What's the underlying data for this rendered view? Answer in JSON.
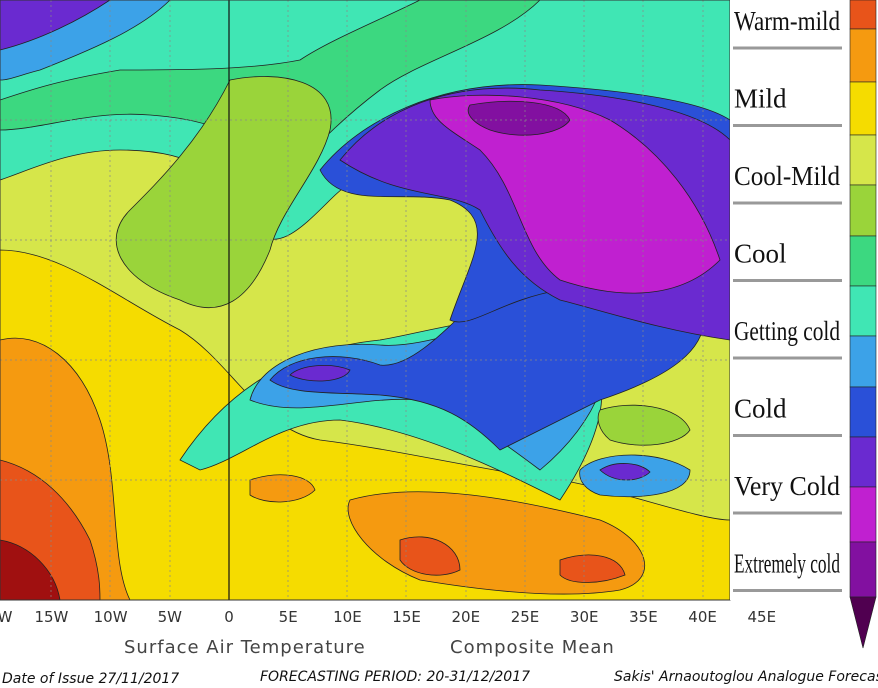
{
  "legend": {
    "labels": [
      "Warm-mild",
      "Mild",
      "Cool-Mild",
      "Cool",
      "Getting cold",
      "Cold",
      "Very Cold",
      "Extremely cold"
    ]
  },
  "axis": {
    "longitudes": [
      "W",
      "15W",
      "10W",
      "5W",
      "0",
      "5E",
      "10E",
      "15E",
      "20E",
      "25E",
      "30E",
      "35E",
      "40E",
      "45E"
    ]
  },
  "caption": {
    "variable": "Surface Air Temperature",
    "statistic": "Composite Mean"
  },
  "footer": {
    "issue": "Date of Issue 27/11/2017",
    "period": "FORECASTING PERIOD: 20-31/12/2017",
    "source": "Sakis' Arnaoutoglou Analogue Forecast"
  }
}
